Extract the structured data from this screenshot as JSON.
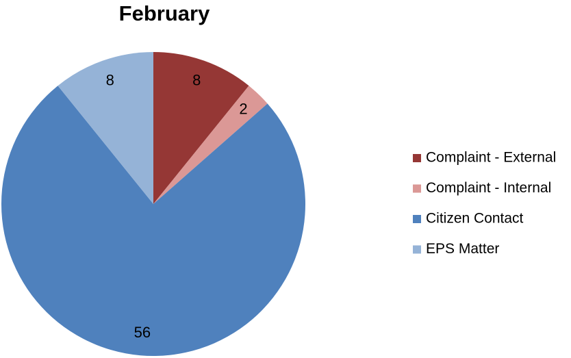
{
  "chart_data": {
    "type": "pie",
    "title": "February",
    "categories": [
      "Complaint - External",
      "Complaint - Internal",
      "Citizen Contact",
      "EPS Matter"
    ],
    "values": [
      8,
      2,
      56,
      8
    ],
    "colors": [
      "#953735",
      "#db9896",
      "#4f81bd",
      "#95b3d7"
    ],
    "legend": "right"
  }
}
